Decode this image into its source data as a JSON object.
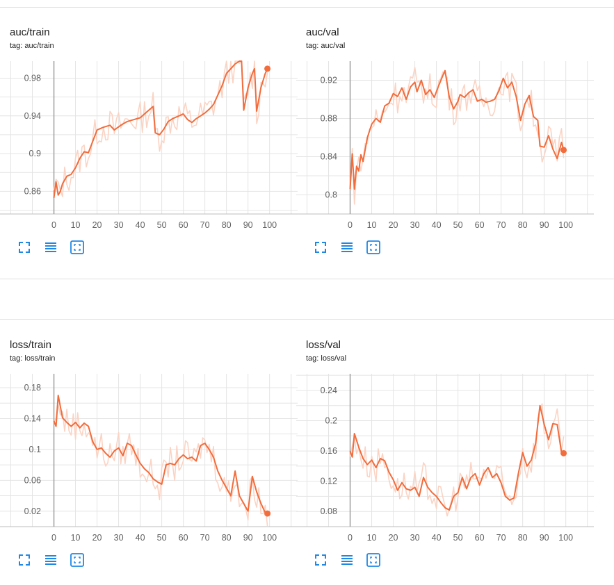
{
  "colors": {
    "smoothed": "#f26c3c",
    "raw": "#fbd3c3",
    "grid": "#e4e4e4",
    "axis": "#9e9e9e",
    "tick_text": "#616161",
    "icon_blue": "#1e88e5"
  },
  "toolbar_icons": [
    "fullscreen-icon",
    "data-list-icon",
    "fit-domain-icon"
  ],
  "cards": [
    {
      "title": "auc/train",
      "tag": "tag: auc/train",
      "chart_data": {
        "type": "line",
        "title": "auc/train",
        "xlabel": "",
        "ylabel": "",
        "xlim": [
          -25,
          113
        ],
        "ylim": [
          0.836,
          0.998
        ],
        "x_ticks": [
          0,
          10,
          20,
          30,
          40,
          50,
          60,
          70,
          80,
          90,
          100
        ],
        "y_ticks": [
          0.86,
          0.9,
          0.94,
          0.98
        ],
        "y_tick_labels": [
          "0.86",
          "0.9",
          "0.94",
          "0.98"
        ],
        "grid": true,
        "series": [
          {
            "points": [
              [
                0,
                0.853
              ],
              [
                1,
                0.87
              ],
              [
                2,
                0.856
              ],
              [
                3,
                0.86
              ],
              [
                4,
                0.868
              ],
              [
                6,
                0.876
              ],
              [
                8,
                0.878
              ],
              [
                10,
                0.885
              ],
              [
                12,
                0.895
              ],
              [
                14,
                0.902
              ],
              [
                16,
                0.901
              ],
              [
                18,
                0.913
              ],
              [
                20,
                0.925
              ],
              [
                23,
                0.928
              ],
              [
                26,
                0.93
              ],
              [
                28,
                0.925
              ],
              [
                31,
                0.93
              ],
              [
                34,
                0.934
              ],
              [
                37,
                0.936
              ],
              [
                40,
                0.938
              ],
              [
                42,
                0.942
              ],
              [
                44,
                0.946
              ],
              [
                46,
                0.95
              ],
              [
                47,
                0.922
              ],
              [
                49,
                0.92
              ],
              [
                51,
                0.926
              ],
              [
                53,
                0.934
              ],
              [
                55,
                0.937
              ],
              [
                58,
                0.94
              ],
              [
                60,
                0.942
              ],
              [
                62,
                0.936
              ],
              [
                64,
                0.933
              ],
              [
                66,
                0.937
              ],
              [
                68,
                0.94
              ],
              [
                70,
                0.943
              ],
              [
                72,
                0.947
              ],
              [
                74,
                0.952
              ],
              [
                76,
                0.962
              ],
              [
                78,
                0.972
              ],
              [
                80,
                0.985
              ],
              [
                82,
                0.99
              ],
              [
                84,
                0.995
              ],
              [
                86,
                0.998
              ],
              [
                87,
                0.998
              ],
              [
                88,
                0.946
              ],
              [
                90,
                0.97
              ],
              [
                92,
                0.985
              ],
              [
                93,
                0.99
              ],
              [
                94,
                0.945
              ],
              [
                96,
                0.97
              ],
              [
                98,
                0.985
              ],
              [
                99,
                0.99
              ]
            ]
          }
        ]
      }
    },
    {
      "title": "auc/val",
      "tag": "tag: auc/val",
      "chart_data": {
        "type": "line",
        "title": "auc/val",
        "xlabel": "",
        "ylabel": "",
        "xlim": [
          -25,
          113
        ],
        "ylim": [
          0.78,
          0.94
        ],
        "x_ticks": [
          0,
          10,
          20,
          30,
          40,
          50,
          60,
          70,
          80,
          90,
          100
        ],
        "y_ticks": [
          0.8,
          0.84,
          0.88,
          0.92
        ],
        "y_tick_labels": [
          "0.8",
          "0.84",
          "0.88",
          "0.92"
        ],
        "grid": true,
        "series": [
          {
            "points": [
              [
                0,
                0.806
              ],
              [
                1,
                0.843
              ],
              [
                2,
                0.806
              ],
              [
                3,
                0.83
              ],
              [
                4,
                0.825
              ],
              [
                5,
                0.842
              ],
              [
                6,
                0.835
              ],
              [
                8,
                0.86
              ],
              [
                10,
                0.874
              ],
              [
                12,
                0.88
              ],
              [
                14,
                0.876
              ],
              [
                16,
                0.893
              ],
              [
                18,
                0.896
              ],
              [
                20,
                0.906
              ],
              [
                22,
                0.903
              ],
              [
                24,
                0.912
              ],
              [
                26,
                0.9
              ],
              [
                28,
                0.913
              ],
              [
                30,
                0.918
              ],
              [
                31,
                0.908
              ],
              [
                33,
                0.92
              ],
              [
                35,
                0.905
              ],
              [
                37,
                0.91
              ],
              [
                39,
                0.902
              ],
              [
                41,
                0.914
              ],
              [
                43,
                0.925
              ],
              [
                44,
                0.93
              ],
              [
                46,
                0.902
              ],
              [
                48,
                0.89
              ],
              [
                50,
                0.898
              ],
              [
                51,
                0.905
              ],
              [
                53,
                0.902
              ],
              [
                55,
                0.907
              ],
              [
                57,
                0.91
              ],
              [
                59,
                0.898
              ],
              [
                61,
                0.9
              ],
              [
                63,
                0.897
              ],
              [
                65,
                0.898
              ],
              [
                67,
                0.9
              ],
              [
                69,
                0.909
              ],
              [
                71,
                0.922
              ],
              [
                73,
                0.912
              ],
              [
                75,
                0.918
              ],
              [
                77,
                0.903
              ],
              [
                79,
                0.878
              ],
              [
                81,
                0.895
              ],
              [
                83,
                0.904
              ],
              [
                85,
                0.882
              ],
              [
                87,
                0.878
              ],
              [
                88,
                0.851
              ],
              [
                90,
                0.85
              ],
              [
                92,
                0.862
              ],
              [
                94,
                0.848
              ],
              [
                96,
                0.838
              ],
              [
                98,
                0.855
              ],
              [
                99,
                0.847
              ]
            ]
          }
        ]
      }
    },
    {
      "title": "loss/train",
      "tag": "tag: loss/train",
      "chart_data": {
        "type": "line",
        "title": "loss/train",
        "xlabel": "",
        "ylabel": "",
        "xlim": [
          -25,
          113
        ],
        "ylim": [
          0.0,
          0.198
        ],
        "x_ticks": [
          0,
          10,
          20,
          30,
          40,
          50,
          60,
          70,
          80,
          90,
          100
        ],
        "y_ticks": [
          0.02,
          0.06,
          0.1,
          0.14,
          0.18
        ],
        "y_tick_labels": [
          "0.02",
          "0.06",
          "0.1",
          "0.14",
          "0.18"
        ],
        "grid": true,
        "series": [
          {
            "points": [
              [
                0,
                0.137
              ],
              [
                1,
                0.13
              ],
              [
                2,
                0.17
              ],
              [
                4,
                0.141
              ],
              [
                6,
                0.135
              ],
              [
                8,
                0.13
              ],
              [
                10,
                0.135
              ],
              [
                12,
                0.128
              ],
              [
                14,
                0.134
              ],
              [
                16,
                0.13
              ],
              [
                18,
                0.11
              ],
              [
                20,
                0.1
              ],
              [
                22,
                0.102
              ],
              [
                24,
                0.095
              ],
              [
                26,
                0.09
              ],
              [
                28,
                0.098
              ],
              [
                30,
                0.102
              ],
              [
                32,
                0.092
              ],
              [
                34,
                0.108
              ],
              [
                36,
                0.105
              ],
              [
                38,
                0.093
              ],
              [
                40,
                0.082
              ],
              [
                42,
                0.075
              ],
              [
                44,
                0.07
              ],
              [
                46,
                0.062
              ],
              [
                48,
                0.058
              ],
              [
                50,
                0.055
              ],
              [
                52,
                0.08
              ],
              [
                54,
                0.082
              ],
              [
                56,
                0.08
              ],
              [
                58,
                0.088
              ],
              [
                60,
                0.093
              ],
              [
                62,
                0.088
              ],
              [
                64,
                0.09
              ],
              [
                66,
                0.085
              ],
              [
                68,
                0.105
              ],
              [
                70,
                0.108
              ],
              [
                72,
                0.1
              ],
              [
                74,
                0.09
              ],
              [
                76,
                0.072
              ],
              [
                78,
                0.06
              ],
              [
                80,
                0.05
              ],
              [
                82,
                0.04
              ],
              [
                84,
                0.072
              ],
              [
                86,
                0.04
              ],
              [
                88,
                0.03
              ],
              [
                90,
                0.02
              ],
              [
                92,
                0.065
              ],
              [
                94,
                0.045
              ],
              [
                96,
                0.03
              ],
              [
                98,
                0.018
              ],
              [
                99,
                0.017
              ]
            ]
          }
        ]
      }
    },
    {
      "title": "loss/val",
      "tag": "tag: loss/val",
      "chart_data": {
        "type": "line",
        "title": "loss/val",
        "xlabel": "",
        "ylabel": "",
        "xlim": [
          -25,
          113
        ],
        "ylim": [
          0.06,
          0.262
        ],
        "x_ticks": [
          0,
          10,
          20,
          30,
          40,
          50,
          60,
          70,
          80,
          90,
          100
        ],
        "y_ticks": [
          0.08,
          0.12,
          0.16,
          0.2,
          0.24
        ],
        "y_tick_labels": [
          "0.08",
          "0.12",
          "0.16",
          "0.2",
          "0.24"
        ],
        "grid": true,
        "series": [
          {
            "points": [
              [
                0,
                0.16
              ],
              [
                1,
                0.152
              ],
              [
                2,
                0.183
              ],
              [
                4,
                0.165
              ],
              [
                6,
                0.15
              ],
              [
                8,
                0.142
              ],
              [
                10,
                0.148
              ],
              [
                12,
                0.138
              ],
              [
                14,
                0.15
              ],
              [
                16,
                0.147
              ],
              [
                18,
                0.132
              ],
              [
                20,
                0.122
              ],
              [
                22,
                0.108
              ],
              [
                24,
                0.118
              ],
              [
                26,
                0.11
              ],
              [
                28,
                0.108
              ],
              [
                30,
                0.112
              ],
              [
                32,
                0.1
              ],
              [
                34,
                0.125
              ],
              [
                36,
                0.112
              ],
              [
                38,
                0.105
              ],
              [
                40,
                0.1
              ],
              [
                42,
                0.092
              ],
              [
                44,
                0.085
              ],
              [
                46,
                0.082
              ],
              [
                48,
                0.1
              ],
              [
                50,
                0.105
              ],
              [
                52,
                0.125
              ],
              [
                54,
                0.11
              ],
              [
                56,
                0.125
              ],
              [
                58,
                0.13
              ],
              [
                60,
                0.115
              ],
              [
                62,
                0.13
              ],
              [
                64,
                0.138
              ],
              [
                66,
                0.125
              ],
              [
                68,
                0.13
              ],
              [
                70,
                0.118
              ],
              [
                72,
                0.1
              ],
              [
                74,
                0.095
              ],
              [
                76,
                0.098
              ],
              [
                78,
                0.13
              ],
              [
                80,
                0.158
              ],
              [
                82,
                0.14
              ],
              [
                84,
                0.148
              ],
              [
                86,
                0.17
              ],
              [
                88,
                0.22
              ],
              [
                90,
                0.195
              ],
              [
                92,
                0.175
              ],
              [
                94,
                0.196
              ],
              [
                96,
                0.195
              ],
              [
                98,
                0.158
              ],
              [
                99,
                0.157
              ]
            ]
          }
        ]
      }
    }
  ]
}
